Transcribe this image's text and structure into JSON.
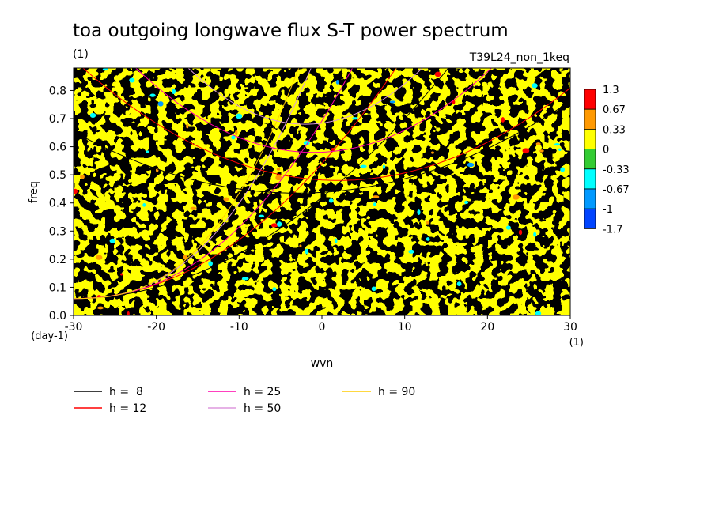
{
  "chart_data": {
    "type": "heatmap",
    "title": "toa outgoing longwave flux S-T power spectrum",
    "title_units": "(1)",
    "run_label": "T39L24_non_1keq",
    "xlabel": "wvn",
    "xunits": "(1)",
    "ylabel": "freq",
    "yunits": "(day-1)",
    "xlim": [
      -30,
      30
    ],
    "ylim": [
      0,
      0.88
    ],
    "x_ticks": [
      "-30",
      "-20",
      "-10",
      "0",
      "10",
      "20",
      "30"
    ],
    "x_tick_values": [
      -30,
      -20,
      -10,
      0,
      10,
      20,
      30
    ],
    "y_ticks": [
      "0.0",
      "0.1",
      "0.2",
      "0.3",
      "0.4",
      "0.5",
      "0.6",
      "0.7",
      "0.8"
    ],
    "y_tick_values": [
      0,
      0.1,
      0.2,
      0.3,
      0.4,
      0.5,
      0.6,
      0.7,
      0.8
    ],
    "colorbar": {
      "labels": [
        "1.3",
        "0.67",
        "0.33",
        "0",
        "-0.33",
        "-0.67",
        "-1",
        "-1.7"
      ],
      "colors": [
        "#ff0000",
        "#ff9900",
        "#ffff00",
        "#33cc33",
        "#00ffff",
        "#0099ff",
        "#0044ff"
      ]
    },
    "field_description": "noisy field dominated by values between -0.33 and 0.33",
    "dispersion_curves": {
      "series": [
        {
          "name": "h =  8",
          "color": "#000000"
        },
        {
          "name": "h = 12",
          "color": "#ff0000"
        },
        {
          "name": "h = 25",
          "color": "#ff00aa"
        },
        {
          "name": "h = 50",
          "color": "#dd99dd"
        },
        {
          "name": "h = 90",
          "color": "#ffcc00"
        }
      ]
    }
  }
}
